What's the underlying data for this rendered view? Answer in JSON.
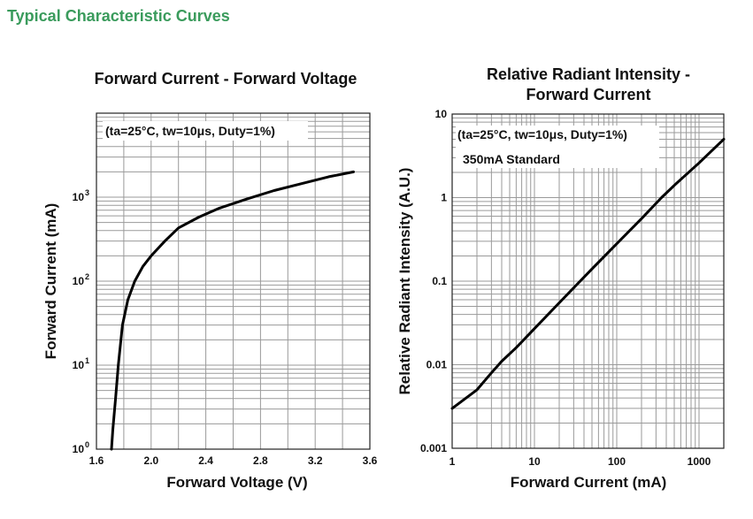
{
  "page": {
    "heading": "Typical Characteristic Curves"
  },
  "chart_data": [
    {
      "type": "line",
      "title": "Forward Current - Forward Voltage",
      "xlabel": "Forward Voltage (V)",
      "ylabel": "Forward Current (mA)",
      "xlim": [
        1.6,
        3.6
      ],
      "ylim": [
        1,
        10000
      ],
      "yscale": "log",
      "grid": true,
      "annotation": "(ta=25°C, tw=10μs, Duty=1%)",
      "x_ticks": [
        "1.6",
        "2.0",
        "2.4",
        "2.8",
        "3.2",
        "3.6"
      ],
      "y_ticks": [
        {
          "base": "10",
          "exp": "0"
        },
        {
          "base": "10",
          "exp": "1"
        },
        {
          "base": "10",
          "exp": "2"
        },
        {
          "base": "10",
          "exp": "3"
        }
      ],
      "series": [
        {
          "x": [
            1.71,
            1.72,
            1.74,
            1.76,
            1.79,
            1.83,
            1.88,
            1.94,
            2.0,
            2.1,
            2.2,
            2.35,
            2.5,
            2.7,
            2.9,
            3.1,
            3.3,
            3.48
          ],
          "y": [
            1,
            1.7,
            4,
            10,
            30,
            60,
            100,
            150,
            200,
            300,
            430,
            580,
            740,
            950,
            1200,
            1450,
            1750,
            2000
          ]
        }
      ]
    },
    {
      "type": "line",
      "title": "Relative Radiant Intensity - Forward Current",
      "title_lines": [
        "Relative Radiant Intensity -",
        "Forward Current"
      ],
      "xlabel": "Forward Current (mA)",
      "ylabel": "Relative Radiant Intensity (A.U.)",
      "xlim": [
        1,
        2000
      ],
      "ylim": [
        0.001,
        10
      ],
      "xscale": "log",
      "yscale": "log",
      "grid": true,
      "annotations": [
        "(ta=25°C, tw=10μs, Duty=1%)",
        "350mA Standard"
      ],
      "x_ticks": [
        "1",
        "10",
        "100",
        "1000"
      ],
      "y_ticks": [
        "0.001",
        "0.01",
        "0.1",
        "1",
        "10"
      ],
      "series": [
        {
          "x": [
            1,
            2,
            3,
            4,
            6,
            10,
            20,
            50,
            100,
            200,
            350,
            500,
            1000,
            2000
          ],
          "y": [
            0.003,
            0.005,
            0.008,
            0.011,
            0.016,
            0.027,
            0.055,
            0.14,
            0.28,
            0.56,
            1.0,
            1.4,
            2.6,
            5.0
          ]
        }
      ]
    }
  ]
}
